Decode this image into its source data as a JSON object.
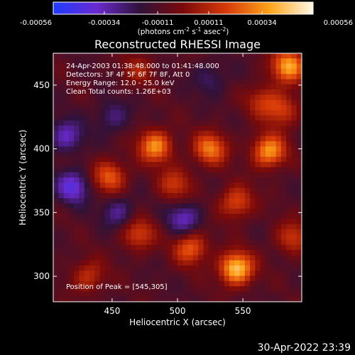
{
  "colorbar": {
    "tick_labels": [
      "-0.00056",
      "-0.00034",
      "-0.00011",
      "0.00011",
      "0.00034",
      "0.00056"
    ],
    "tick_values": [
      -0.00056,
      -0.00034,
      -0.00011,
      0.00011,
      0.00034,
      0.00056
    ],
    "range": [
      -0.00056,
      0.00056
    ],
    "units_prefix": "(photons cm",
    "units_exp1": "-2",
    "units_mid": " s",
    "units_exp2": "-1",
    "units_mid2": " asec",
    "units_exp3": "-2",
    "units_suffix": ")",
    "colors": [
      "#1e3cff",
      "#6a2ad0",
      "#30123a",
      "#7a0a0a",
      "#d83a08",
      "#ffa41a",
      "#fff9e8"
    ]
  },
  "chart_data": {
    "type": "heatmap",
    "title": "Reconstructed RHESSI Image",
    "xlabel": "Heliocentric X (arcsec)",
    "ylabel": "Heliocentric Y (arcsec)",
    "xlim": [
      405,
      595
    ],
    "ylim": [
      280,
      475
    ],
    "x_ticks": [
      450,
      500,
      550
    ],
    "y_ticks": [
      300,
      350,
      400,
      450
    ],
    "x_tick_labels": [
      "450",
      "500",
      "550"
    ],
    "y_tick_labels": [
      "300",
      "350",
      "400",
      "450"
    ],
    "grid": false,
    "annotations": [
      "24-Apr-2003 01:38:48.000 to 01:41:48.000",
      "Detectors: 3F 4F 5F 6F 7F 8F, Att 0",
      "Energy Range: 12.0 - 25.0 keV",
      "Clean     Total counts: 1.26E+03"
    ],
    "peak_label": "Position of Peak = [545,305]",
    "peak_position": [
      545,
      305
    ],
    "sources": [
      {
        "x": 545,
        "y": 306,
        "peak": 1.0
      },
      {
        "x": 585,
        "y": 465,
        "peak": 0.85
      },
      {
        "x": 570,
        "y": 398,
        "peak": 0.82
      },
      {
        "x": 483,
        "y": 402,
        "peak": 0.78
      },
      {
        "x": 525,
        "y": 400,
        "peak": 0.7
      },
      {
        "x": 448,
        "y": 378,
        "peak": 0.6
      },
      {
        "x": 510,
        "y": 322,
        "peak": 0.62
      },
      {
        "x": 470,
        "y": 333,
        "peak": 0.5
      },
      {
        "x": 545,
        "y": 358,
        "peak": 0.55
      },
      {
        "x": 498,
        "y": 372,
        "peak": 0.45
      },
      {
        "x": 580,
        "y": 430,
        "peak": 0.48
      },
      {
        "x": 565,
        "y": 438,
        "peak": 0.4
      },
      {
        "x": 432,
        "y": 300,
        "peak": 0.42
      },
      {
        "x": 588,
        "y": 330,
        "peak": 0.45
      },
      {
        "x": 470,
        "y": 462,
        "peak": 0.3
      },
      {
        "x": 415,
        "y": 410,
        "peak": -0.45
      },
      {
        "x": 420,
        "y": 370,
        "peak": -0.55
      },
      {
        "x": 455,
        "y": 350,
        "peak": -0.35
      },
      {
        "x": 505,
        "y": 345,
        "peak": -0.45
      },
      {
        "x": 450,
        "y": 425,
        "peak": -0.3
      },
      {
        "x": 525,
        "y": 455,
        "peak": -0.25
      }
    ]
  },
  "timestamp": "30-Apr-2022 23:39"
}
